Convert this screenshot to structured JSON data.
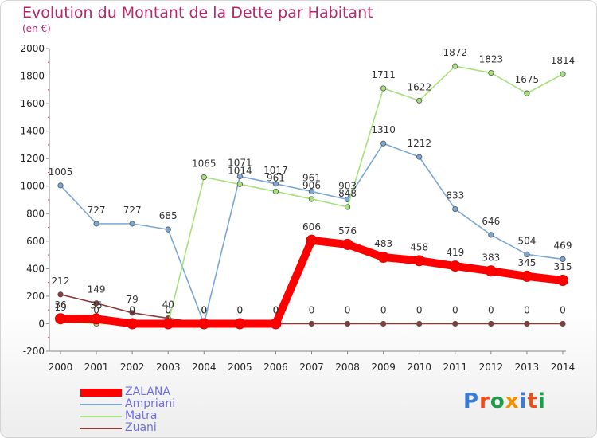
{
  "title": "Evolution du Montant de la Dette par Habitant",
  "unit": "(en €)",
  "logo": "Proxiti",
  "chart_data": {
    "type": "line",
    "x": [
      "2000",
      "2001",
      "2002",
      "2003",
      "2004",
      "2005",
      "2006",
      "2007",
      "2008",
      "2009",
      "2010",
      "2011",
      "2012",
      "2013",
      "2014"
    ],
    "ylim": [
      -200,
      2000
    ],
    "yticks": [
      "-200",
      "0",
      "200",
      "400",
      "600",
      "800",
      "1000",
      "1200",
      "1400",
      "1600",
      "1800",
      "2000"
    ],
    "grid": false,
    "legend_position": "bottom-left",
    "series": [
      {
        "name": "ZALANA",
        "color": "#ff0000",
        "values": [
          36,
          35,
          0,
          0,
          0,
          0,
          0,
          606,
          576,
          483,
          458,
          419,
          383,
          345,
          315
        ],
        "labels": [
          "36",
          "35",
          "0",
          "0",
          "0",
          "0",
          "0",
          "606",
          "576",
          "483",
          "458",
          "419",
          "383",
          "345",
          "315"
        ]
      },
      {
        "name": "Ampriani",
        "color": "#7ba7d7",
        "values": [
          1005,
          727,
          727,
          685,
          0,
          1071,
          1017,
          961,
          903,
          1310,
          1212,
          833,
          646,
          504,
          469
        ],
        "labels": [
          "1005",
          "727",
          "727",
          "685",
          "0",
          "1071",
          "1017",
          "961",
          "903",
          "1310",
          "1212",
          "833",
          "646",
          "504",
          "469"
        ]
      },
      {
        "name": "Matra",
        "color": "#a6e27c",
        "values": [
          19,
          0,
          0,
          0,
          1065,
          1014,
          961,
          906,
          848,
          1711,
          1622,
          1872,
          1823,
          1675,
          1814
        ],
        "labels": [
          "19",
          "0",
          "0",
          "0",
          "1065",
          "1014",
          "961",
          "906",
          "848",
          "1711",
          "1622",
          "1872",
          "1823",
          "1675",
          "1814"
        ]
      },
      {
        "name": "Zuani",
        "color": "#8b3a3a",
        "values": [
          212,
          149,
          79,
          40,
          0,
          0,
          0,
          0,
          0,
          0,
          0,
          0,
          0,
          0,
          0
        ],
        "labels": [
          "212",
          "149",
          "79",
          "40",
          "0",
          "0",
          "0",
          "0",
          "0",
          "0",
          "0",
          "0",
          "0",
          "0",
          "0"
        ]
      }
    ]
  }
}
